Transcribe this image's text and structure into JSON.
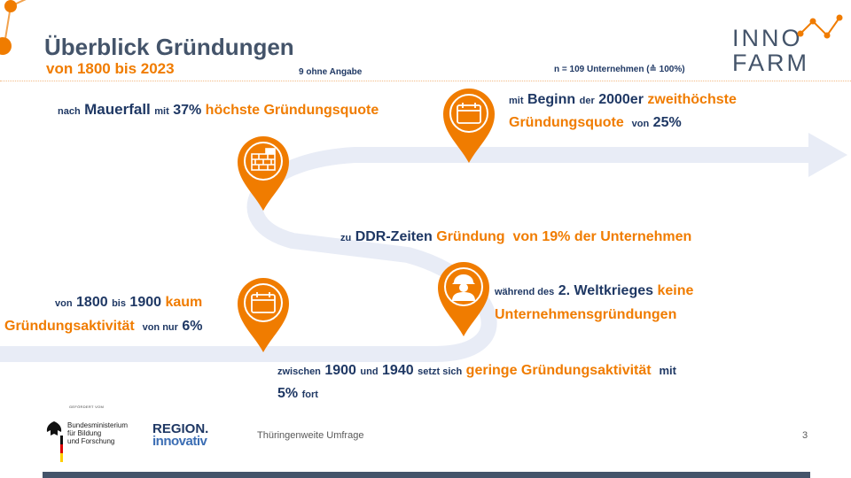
{
  "header": {
    "title": "Überblick Gründungen",
    "subtitle": "von 1800 bis 2023",
    "no_answer_note": "9 ohne Angabe",
    "sample_note": "n = 109 Unternehmen (≙ 100%)"
  },
  "logo": {
    "line1": "INNO",
    "line2": "FARM"
  },
  "milestones": {
    "mauerfall": {
      "p1": "nach",
      "p2": "Mauerfall",
      "p3": "mit",
      "p4": "37%",
      "p5": "höchste Gründungsquote",
      "icon": "brick-wall-icon"
    },
    "y2000": {
      "p1": "mit",
      "p2": "Beginn",
      "p3": "der",
      "p4": "2000er",
      "p5": "zweithöchste",
      "p6": "Gründungsquote",
      "p7": "von",
      "p8": "25%",
      "icon": "calendar-icon"
    },
    "ddr": {
      "p1": "zu",
      "p2": "DDR-Zeiten",
      "p3": "Gründung",
      "p4": "von",
      "p5": "19%",
      "p6": "der",
      "p7": "Unternehmen"
    },
    "ww2": {
      "p1": "während des",
      "p2": "2. Weltkrieges",
      "p3": "keine",
      "p4": "Unternehmensgründungen",
      "icon": "soldier-icon"
    },
    "y1800": {
      "p1": "von",
      "p2": "1800",
      "p3": "bis",
      "p4": "1900",
      "p5": "kaum",
      "p6": "Gründungsaktivität",
      "p7": "von nur",
      "p8": "6%",
      "icon": "calendar-icon"
    },
    "y1900": {
      "p1": "zwischen",
      "p2": "1900",
      "p3": "und",
      "p4": "1940",
      "p5": "setzt sich",
      "p6": "geringe Gründungsaktivität",
      "p7": "mit",
      "p8": "5%",
      "p9": "fort"
    }
  },
  "footer": {
    "funded_by": "GEFÖRDERT VOM",
    "ministry_line1": "Bundesministerium",
    "ministry_line2": "für Bildung",
    "ministry_line3": "und Forschung",
    "program_line1": "REGION.",
    "program_line2": "innovativ",
    "survey": "Thüringenweite Umfrage",
    "page_number": "3"
  },
  "colors": {
    "accent": "#f07c00",
    "navy": "#1f3864",
    "road": "#e8ecf6",
    "slate": "#44546a"
  }
}
